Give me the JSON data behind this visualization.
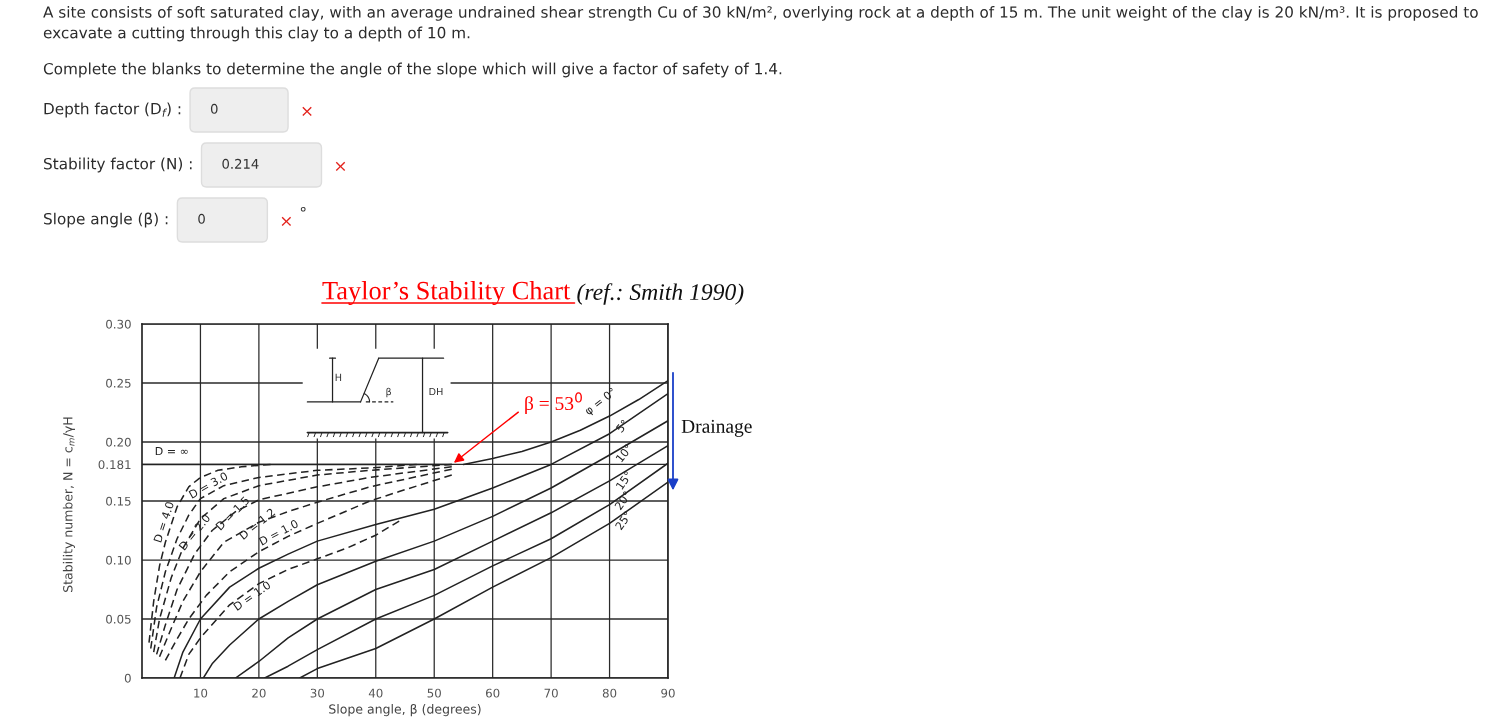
{
  "chart_data": {
    "type": "line",
    "title": "Taylor’s Stability Chart",
    "subtitle": "(ref.: Smith 1990)",
    "xlabel": "Slope angle, β (degrees)",
    "ylabel": "Stability number, N = c$_{m}$/γH",
    "annotations": [
      "A site consists of soft saturated clay, with an average undrained shear strength Cu of 30 kN/m², overlying rock at a depth of 15 m. The unit weight of the clay is 20 kN/m³. It is proposed to excavate a cutting through this clay to a depth of 10 m.",
      "Complete the blanks to determine the angle of the slope which will give a factor of safety of 1.4.",
      "Depth factor (D$_{f}$) :",
      "0",
      "×",
      "Stability factor (N) :",
      "0.214",
      "×",
      "Slope angle (β) :",
      "0",
      "×",
      "°",
      "H",
      "β",
      "DH",
      {
        "text": "β = 53$^{0}$",
        "x": 53,
        "y": 0.181
      },
      "Drainage"
    ],
    "xlim": [
      0,
      90
    ],
    "ylim": [
      0,
      0.3
    ],
    "xticks": [
      10,
      20,
      30,
      40,
      50,
      60,
      70,
      80,
      90
    ],
    "yticks": [
      0,
      0.05,
      {
        "value": 0.1,
        "label": "0.10"
      },
      0.15,
      0.181,
      {
        "value": 0.2,
        "label": "0.20"
      },
      0.25,
      {
        "value": 0.3,
        "label": "0.30"
      }
    ],
    "grid": true,
    "series": [
      {
        "name": "φ = 0°",
        "color": "#222222",
        "line_style": "solid",
        "x": [
          55,
          60,
          65,
          70,
          75,
          80,
          85,
          90
        ],
        "values": [
          0.181,
          0.186,
          0.192,
          0.2,
          0.21,
          0.222,
          0.236,
          0.252
        ]
      },
      {
        "name": "5°",
        "color": "#222222",
        "line_style": "solid",
        "x": [
          5.5,
          7,
          10,
          15,
          20,
          25,
          30,
          40,
          50,
          60,
          70,
          80,
          90
        ],
        "values": [
          0,
          0.022,
          0.05,
          0.077,
          0.093,
          0.105,
          0.116,
          0.13,
          0.143,
          0.161,
          0.181,
          0.207,
          0.241
        ]
      },
      {
        "name": "10°",
        "color": "#222222",
        "line_style": "solid",
        "x": [
          10.5,
          12,
          15,
          20,
          25,
          30,
          40,
          50,
          60,
          70,
          80,
          90
        ],
        "values": [
          0,
          0.012,
          0.028,
          0.05,
          0.065,
          0.079,
          0.099,
          0.116,
          0.137,
          0.161,
          0.189,
          0.218
        ]
      },
      {
        "name": "15°",
        "color": "#222222",
        "line_style": "solid",
        "x": [
          16,
          20,
          25,
          30,
          40,
          50,
          60,
          70,
          80,
          90
        ],
        "values": [
          0,
          0.014,
          0.034,
          0.05,
          0.075,
          0.092,
          0.116,
          0.14,
          0.167,
          0.197
        ]
      },
      {
        "name": "20°",
        "color": "#222222",
        "line_style": "solid",
        "x": [
          21,
          25,
          30,
          40,
          50,
          60,
          70,
          80,
          90
        ],
        "values": [
          0,
          0.01,
          0.024,
          0.05,
          0.07,
          0.095,
          0.118,
          0.147,
          0.182
        ]
      },
      {
        "name": "25°",
        "color": "#222222",
        "line_style": "solid",
        "x": [
          27,
          30,
          40,
          50,
          60,
          70,
          80,
          90
        ],
        "values": [
          0,
          0.008,
          0.025,
          0.05,
          0.077,
          0.102,
          0.131,
          0.166
        ]
      },
      {
        "name": "D = ∞",
        "color": "#222222",
        "line_style": "solid",
        "x": [
          0,
          53
        ],
        "values": [
          0.181,
          0.181
        ]
      },
      {
        "name": "D = 4.0",
        "color": "#222222",
        "line_style": "dashed",
        "x": [
          1.2,
          2,
          3,
          4,
          6,
          8,
          10,
          13,
          17,
          22
        ],
        "values": [
          0.03,
          0.065,
          0.095,
          0.115,
          0.145,
          0.162,
          0.17,
          0.176,
          0.179,
          0.181
        ]
      },
      {
        "name": "D = 3.0",
        "color": "#222222",
        "line_style": "dashed",
        "x": [
          1.5,
          2.5,
          4,
          6,
          8,
          10,
          14,
          20,
          30,
          39,
          47
        ],
        "values": [
          0.025,
          0.06,
          0.09,
          0.118,
          0.138,
          0.152,
          0.163,
          0.17,
          0.176,
          0.178,
          0.181
        ]
      },
      {
        "name": "D = 2.0",
        "color": "#222222",
        "line_style": "dashed",
        "x": [
          2,
          3,
          5,
          7,
          10,
          14,
          20,
          30,
          39,
          53
        ],
        "values": [
          0.022,
          0.05,
          0.085,
          0.11,
          0.135,
          0.152,
          0.163,
          0.172,
          0.176,
          0.181
        ]
      },
      {
        "name": "D = 1.5",
        "color": "#222222",
        "line_style": "dashed",
        "x": [
          2.5,
          4,
          6,
          9,
          12,
          16,
          20,
          30,
          39,
          53
        ],
        "values": [
          0.02,
          0.045,
          0.075,
          0.105,
          0.125,
          0.141,
          0.151,
          0.162,
          0.17,
          0.179
        ]
      },
      {
        "name": "D = 1.2",
        "color": "#222222",
        "line_style": "dashed",
        "x": [
          3,
          5,
          7,
          10,
          14,
          20,
          25,
          30,
          39,
          53
        ],
        "values": [
          0.018,
          0.042,
          0.065,
          0.09,
          0.115,
          0.132,
          0.141,
          0.149,
          0.162,
          0.177
        ]
      },
      {
        "name": "D = 1.0",
        "color": "#222222",
        "line_style": "dashed",
        "x": [
          4,
          6,
          8,
          11,
          15,
          20,
          25,
          30,
          39,
          44,
          53
        ],
        "values": [
          0.015,
          0.033,
          0.05,
          0.07,
          0.09,
          0.107,
          0.12,
          0.131,
          0.15,
          0.158,
          0.172
        ]
      },
      {
        "name": "D = 1.0",
        "color": "#222222",
        "line_style": "dashed",
        "x": [
          6.5,
          8,
          10,
          15,
          20,
          25,
          30,
          35,
          40,
          44
        ],
        "values": [
          0,
          0.02,
          0.034,
          0.062,
          0.08,
          0.092,
          0.101,
          0.11,
          0.121,
          0.133
        ]
      }
    ]
  }
}
